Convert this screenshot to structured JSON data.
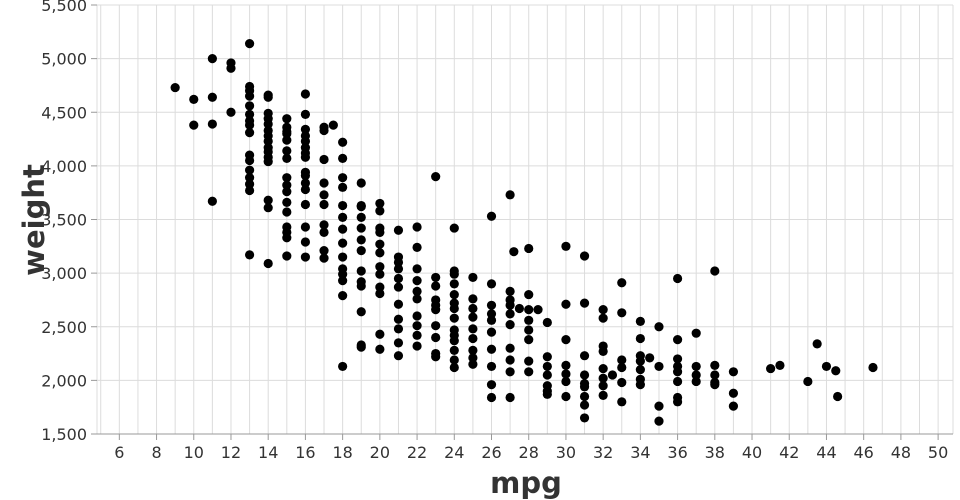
{
  "chart_data": {
    "type": "scatter",
    "title": "",
    "xlabel": "mpg",
    "ylabel": "weight",
    "xlim": [
      4.8,
      50.8
    ],
    "ylim": [
      1500,
      5500
    ],
    "x_ticks": [
      6,
      8,
      10,
      12,
      14,
      16,
      18,
      20,
      22,
      24,
      26,
      28,
      30,
      32,
      34,
      36,
      38,
      40,
      42,
      44,
      46,
      48,
      50
    ],
    "y_ticks": [
      1500,
      2000,
      2500,
      3000,
      3500,
      4000,
      4500,
      5000,
      5500
    ],
    "y_tick_labels": [
      "1,500",
      "2,000",
      "2,500",
      "3,000",
      "3,500",
      "4,000",
      "4,500",
      "5,000",
      "5,500"
    ],
    "grid": true,
    "marker_color": "#000000",
    "points": [
      [
        9,
        4730
      ],
      [
        10,
        4620
      ],
      [
        10,
        4380
      ],
      [
        11,
        5000
      ],
      [
        11,
        4640
      ],
      [
        11,
        4390
      ],
      [
        11,
        3670
      ],
      [
        12,
        4960
      ],
      [
        12,
        4910
      ],
      [
        12,
        4500
      ],
      [
        13,
        5140
      ],
      [
        13,
        4740
      ],
      [
        13,
        4700
      ],
      [
        13,
        4650
      ],
      [
        13,
        4560
      ],
      [
        13,
        4480
      ],
      [
        13,
        4420
      ],
      [
        13,
        4380
      ],
      [
        13,
        4310
      ],
      [
        13,
        4100
      ],
      [
        13,
        4050
      ],
      [
        13,
        3960
      ],
      [
        13,
        3890
      ],
      [
        13,
        3830
      ],
      [
        13,
        3770
      ],
      [
        13,
        3170
      ],
      [
        14,
        4660
      ],
      [
        14,
        4640
      ],
      [
        14,
        4490
      ],
      [
        14,
        4440
      ],
      [
        14,
        4390
      ],
      [
        14,
        4330
      ],
      [
        14,
        4280
      ],
      [
        14,
        4230
      ],
      [
        14,
        4170
      ],
      [
        14,
        4130
      ],
      [
        14,
        4080
      ],
      [
        14,
        4040
      ],
      [
        14,
        3680
      ],
      [
        14,
        3610
      ],
      [
        14,
        3090
      ],
      [
        15,
        4440
      ],
      [
        15,
        4360
      ],
      [
        15,
        4320
      ],
      [
        15,
        4300
      ],
      [
        15,
        4240
      ],
      [
        15,
        4140
      ],
      [
        15,
        4070
      ],
      [
        15,
        3890
      ],
      [
        15,
        3820
      ],
      [
        15,
        3760
      ],
      [
        15,
        3660
      ],
      [
        15,
        3570
      ],
      [
        15,
        3430
      ],
      [
        15,
        3380
      ],
      [
        15,
        3330
      ],
      [
        15,
        3160
      ],
      [
        16,
        4670
      ],
      [
        16,
        4480
      ],
      [
        16,
        4340
      ],
      [
        16,
        4280
      ],
      [
        16,
        4230
      ],
      [
        16,
        4170
      ],
      [
        16,
        4120
      ],
      [
        16,
        4080
      ],
      [
        16,
        3940
      ],
      [
        16,
        3910
      ],
      [
        16,
        3840
      ],
      [
        16,
        3780
      ],
      [
        16,
        3640
      ],
      [
        16,
        3430
      ],
      [
        16,
        3290
      ],
      [
        16,
        3150
      ],
      [
        17,
        4360
      ],
      [
        17,
        4330
      ],
      [
        17,
        4060
      ],
      [
        17,
        3840
      ],
      [
        17,
        3730
      ],
      [
        17,
        3640
      ],
      [
        17,
        3450
      ],
      [
        17,
        3380
      ],
      [
        17,
        3210
      ],
      [
        17,
        3140
      ],
      [
        17.5,
        4380
      ],
      [
        18,
        4220
      ],
      [
        18,
        4070
      ],
      [
        18,
        3890
      ],
      [
        18,
        3800
      ],
      [
        18,
        3630
      ],
      [
        18,
        3520
      ],
      [
        18,
        3410
      ],
      [
        18,
        3280
      ],
      [
        18,
        3150
      ],
      [
        18,
        3040
      ],
      [
        18,
        2990
      ],
      [
        18,
        2930
      ],
      [
        18,
        2790
      ],
      [
        18,
        2130
      ],
      [
        19,
        3840
      ],
      [
        19,
        3630
      ],
      [
        19,
        3620
      ],
      [
        19,
        3520
      ],
      [
        19,
        3420
      ],
      [
        19,
        3310
      ],
      [
        19,
        3210
      ],
      [
        19,
        3020
      ],
      [
        19,
        2920
      ],
      [
        19,
        2880
      ],
      [
        19,
        2640
      ],
      [
        19,
        2330
      ],
      [
        19,
        2310
      ],
      [
        20,
        3650
      ],
      [
        20,
        3580
      ],
      [
        20,
        3420
      ],
      [
        20,
        3380
      ],
      [
        20,
        3270
      ],
      [
        20,
        3190
      ],
      [
        20,
        3060
      ],
      [
        20,
        2990
      ],
      [
        20,
        2870
      ],
      [
        20,
        2810
      ],
      [
        20,
        2430
      ],
      [
        20,
        2290
      ],
      [
        21,
        3400
      ],
      [
        21,
        3150
      ],
      [
        21,
        3100
      ],
      [
        21,
        3040
      ],
      [
        21,
        2950
      ],
      [
        21,
        2870
      ],
      [
        21,
        2710
      ],
      [
        21,
        2570
      ],
      [
        21,
        2480
      ],
      [
        21,
        2350
      ],
      [
        21,
        2230
      ],
      [
        22,
        3430
      ],
      [
        22,
        3240
      ],
      [
        22,
        3040
      ],
      [
        22,
        2930
      ],
      [
        22,
        2830
      ],
      [
        22,
        2760
      ],
      [
        22,
        2600
      ],
      [
        22,
        2510
      ],
      [
        22,
        2420
      ],
      [
        22,
        2320
      ],
      [
        23,
        3900
      ],
      [
        23,
        2960
      ],
      [
        23,
        2880
      ],
      [
        23,
        2750
      ],
      [
        23,
        2700
      ],
      [
        23,
        2660
      ],
      [
        23,
        2510
      ],
      [
        23,
        2400
      ],
      [
        23,
        2250
      ],
      [
        23,
        2220
      ],
      [
        24,
        3420
      ],
      [
        24,
        3020
      ],
      [
        24,
        2990
      ],
      [
        24,
        2900
      ],
      [
        24,
        2800
      ],
      [
        24,
        2720
      ],
      [
        24,
        2670
      ],
      [
        24,
        2580
      ],
      [
        24,
        2470
      ],
      [
        24,
        2420
      ],
      [
        24,
        2370
      ],
      [
        24,
        2280
      ],
      [
        24,
        2190
      ],
      [
        24,
        2120
      ],
      [
        25,
        2960
      ],
      [
        25,
        2760
      ],
      [
        25,
        2670
      ],
      [
        25,
        2590
      ],
      [
        25,
        2480
      ],
      [
        25,
        2390
      ],
      [
        25,
        2280
      ],
      [
        25,
        2210
      ],
      [
        25,
        2150
      ],
      [
        26,
        3530
      ],
      [
        26,
        2900
      ],
      [
        26,
        2700
      ],
      [
        26,
        2620
      ],
      [
        26,
        2560
      ],
      [
        26,
        2450
      ],
      [
        26,
        2290
      ],
      [
        26,
        2130
      ],
      [
        26,
        1960
      ],
      [
        26,
        1840
      ],
      [
        27,
        3730
      ],
      [
        27,
        2830
      ],
      [
        27,
        2750
      ],
      [
        27,
        2700
      ],
      [
        27,
        2620
      ],
      [
        27,
        2520
      ],
      [
        27,
        2300
      ],
      [
        27,
        2190
      ],
      [
        27,
        2080
      ],
      [
        27,
        1840
      ],
      [
        27.2,
        3200
      ],
      [
        27.5,
        2670
      ],
      [
        28,
        3230
      ],
      [
        28,
        2800
      ],
      [
        28,
        2660
      ],
      [
        28,
        2560
      ],
      [
        28,
        2470
      ],
      [
        28,
        2380
      ],
      [
        28,
        2180
      ],
      [
        28,
        2080
      ],
      [
        28.5,
        2660
      ],
      [
        29,
        2540
      ],
      [
        29,
        2220
      ],
      [
        29,
        2130
      ],
      [
        29,
        2050
      ],
      [
        29,
        1950
      ],
      [
        29,
        1900
      ],
      [
        29,
        1870
      ],
      [
        30,
        3250
      ],
      [
        30,
        2710
      ],
      [
        30,
        2380
      ],
      [
        30,
        2140
      ],
      [
        30,
        2060
      ],
      [
        30,
        1990
      ],
      [
        30,
        1850
      ],
      [
        31,
        3160
      ],
      [
        31,
        2720
      ],
      [
        31,
        2230
      ],
      [
        31,
        2050
      ],
      [
        31,
        1970
      ],
      [
        31,
        1940
      ],
      [
        31,
        1850
      ],
      [
        31,
        1770
      ],
      [
        31,
        1650
      ],
      [
        32,
        2660
      ],
      [
        32,
        2580
      ],
      [
        32,
        2320
      ],
      [
        32,
        2270
      ],
      [
        32,
        2110
      ],
      [
        32,
        2020
      ],
      [
        32,
        1950
      ],
      [
        32,
        1860
      ],
      [
        32.5,
        2050
      ],
      [
        33,
        2910
      ],
      [
        33,
        2630
      ],
      [
        33,
        2190
      ],
      [
        33,
        2120
      ],
      [
        33,
        1980
      ],
      [
        33,
        1800
      ],
      [
        34,
        2550
      ],
      [
        34,
        2390
      ],
      [
        34,
        2230
      ],
      [
        34,
        2180
      ],
      [
        34,
        2100
      ],
      [
        34,
        2010
      ],
      [
        34,
        1960
      ],
      [
        34.5,
        2210
      ],
      [
        35,
        2500
      ],
      [
        35,
        2130
      ],
      [
        35,
        1760
      ],
      [
        35,
        1620
      ],
      [
        36,
        2950
      ],
      [
        36,
        2380
      ],
      [
        36,
        2200
      ],
      [
        36,
        2130
      ],
      [
        36,
        2080
      ],
      [
        36,
        1990
      ],
      [
        36,
        1840
      ],
      [
        36,
        1800
      ],
      [
        37,
        2440
      ],
      [
        37,
        2130
      ],
      [
        37,
        2050
      ],
      [
        37,
        1990
      ],
      [
        38,
        3020
      ],
      [
        38,
        2140
      ],
      [
        38,
        2050
      ],
      [
        38,
        1980
      ],
      [
        38,
        1960
      ],
      [
        39,
        2080
      ],
      [
        39,
        1880
      ],
      [
        39,
        1760
      ],
      [
        41,
        2110
      ],
      [
        41.5,
        2140
      ],
      [
        43,
        1990
      ],
      [
        43.5,
        2340
      ],
      [
        44,
        2130
      ],
      [
        44.5,
        2090
      ],
      [
        44.6,
        1850
      ],
      [
        46.5,
        2120
      ]
    ]
  }
}
